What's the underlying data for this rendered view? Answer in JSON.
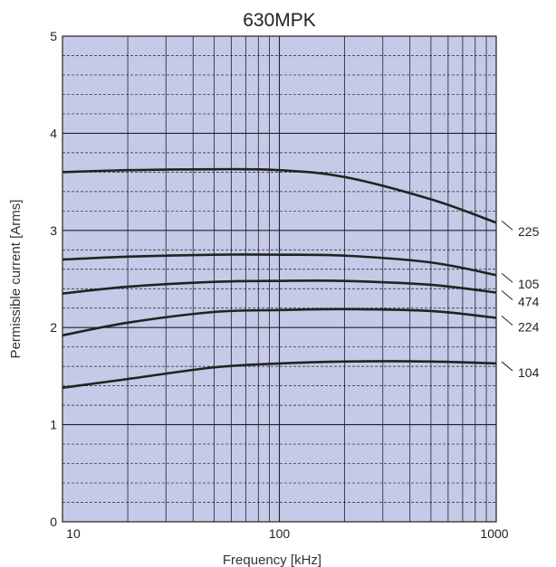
{
  "chart_data": {
    "type": "line",
    "title": "630MPK",
    "xlabel": "Frequency [kHz]",
    "ylabel": "Permissible current [Arms]",
    "x_scale": "log",
    "xlim": [
      10,
      1000
    ],
    "ylim": [
      0,
      5
    ],
    "x_ticks": [
      "10",
      "100",
      "1000"
    ],
    "y_ticks": [
      "0",
      "1",
      "2",
      "3",
      "4",
      "5"
    ],
    "grid": true,
    "plot_background": "#c5cae8",
    "line_color": "#222222",
    "series": [
      {
        "name": "225",
        "x": [
          10,
          20,
          50,
          100,
          200,
          500,
          1000
        ],
        "y": [
          3.6,
          3.62,
          3.63,
          3.62,
          3.55,
          3.32,
          3.08
        ]
      },
      {
        "name": "105",
        "x": [
          10,
          20,
          50,
          100,
          200,
          500,
          1000
        ],
        "y": [
          2.7,
          2.73,
          2.75,
          2.75,
          2.74,
          2.67,
          2.54
        ]
      },
      {
        "name": "474",
        "x": [
          10,
          20,
          50,
          100,
          200,
          500,
          1000
        ],
        "y": [
          2.35,
          2.42,
          2.47,
          2.48,
          2.48,
          2.44,
          2.36
        ]
      },
      {
        "name": "224",
        "x": [
          10,
          20,
          50,
          100,
          200,
          500,
          1000
        ],
        "y": [
          1.92,
          2.05,
          2.16,
          2.18,
          2.19,
          2.17,
          2.1
        ]
      },
      {
        "name": "104",
        "x": [
          10,
          20,
          50,
          100,
          200,
          500,
          1000
        ],
        "y": [
          1.38,
          1.47,
          1.59,
          1.63,
          1.65,
          1.65,
          1.63
        ]
      }
    ]
  }
}
